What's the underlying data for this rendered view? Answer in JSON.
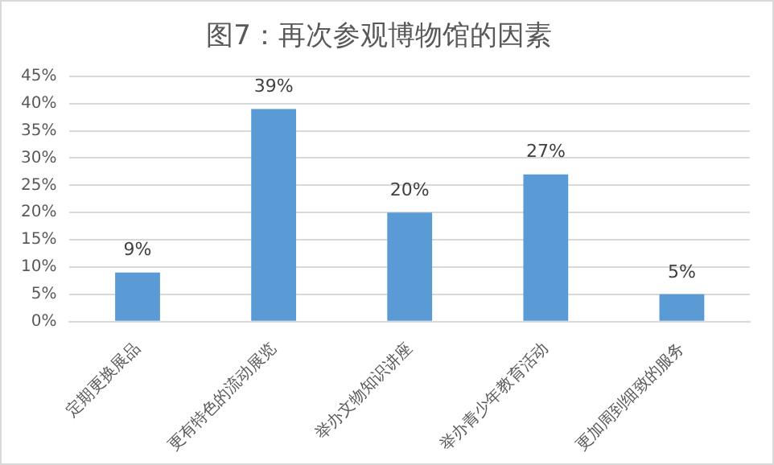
{
  "chart_data": {
    "type": "bar",
    "title": "图7：再次参观博物馆的因素",
    "categories": [
      "定期更换展品",
      "更有特色的流动展览",
      "举办文物知识讲座",
      "举办青少年教育活动",
      "更加周到细致的服务"
    ],
    "values": [
      9,
      39,
      20,
      27,
      5
    ],
    "color": "#5b9bd5",
    "value_labels": [
      "9%",
      "39%",
      "20%",
      "27%",
      "5%"
    ],
    "ylim": [
      0,
      45
    ],
    "yticks": [
      {
        "value": 0,
        "label": "0%"
      },
      {
        "value": 5,
        "label": "5%"
      },
      {
        "value": 10,
        "label": "10%"
      },
      {
        "value": 15,
        "label": "15%"
      },
      {
        "value": 20,
        "label": "20%"
      },
      {
        "value": 25,
        "label": "25%"
      },
      {
        "value": 30,
        "label": "30%"
      },
      {
        "value": 35,
        "label": "35%"
      },
      {
        "value": 40,
        "label": "40%"
      },
      {
        "value": 45,
        "label": "45%"
      }
    ],
    "grid": "y",
    "legend": false
  }
}
